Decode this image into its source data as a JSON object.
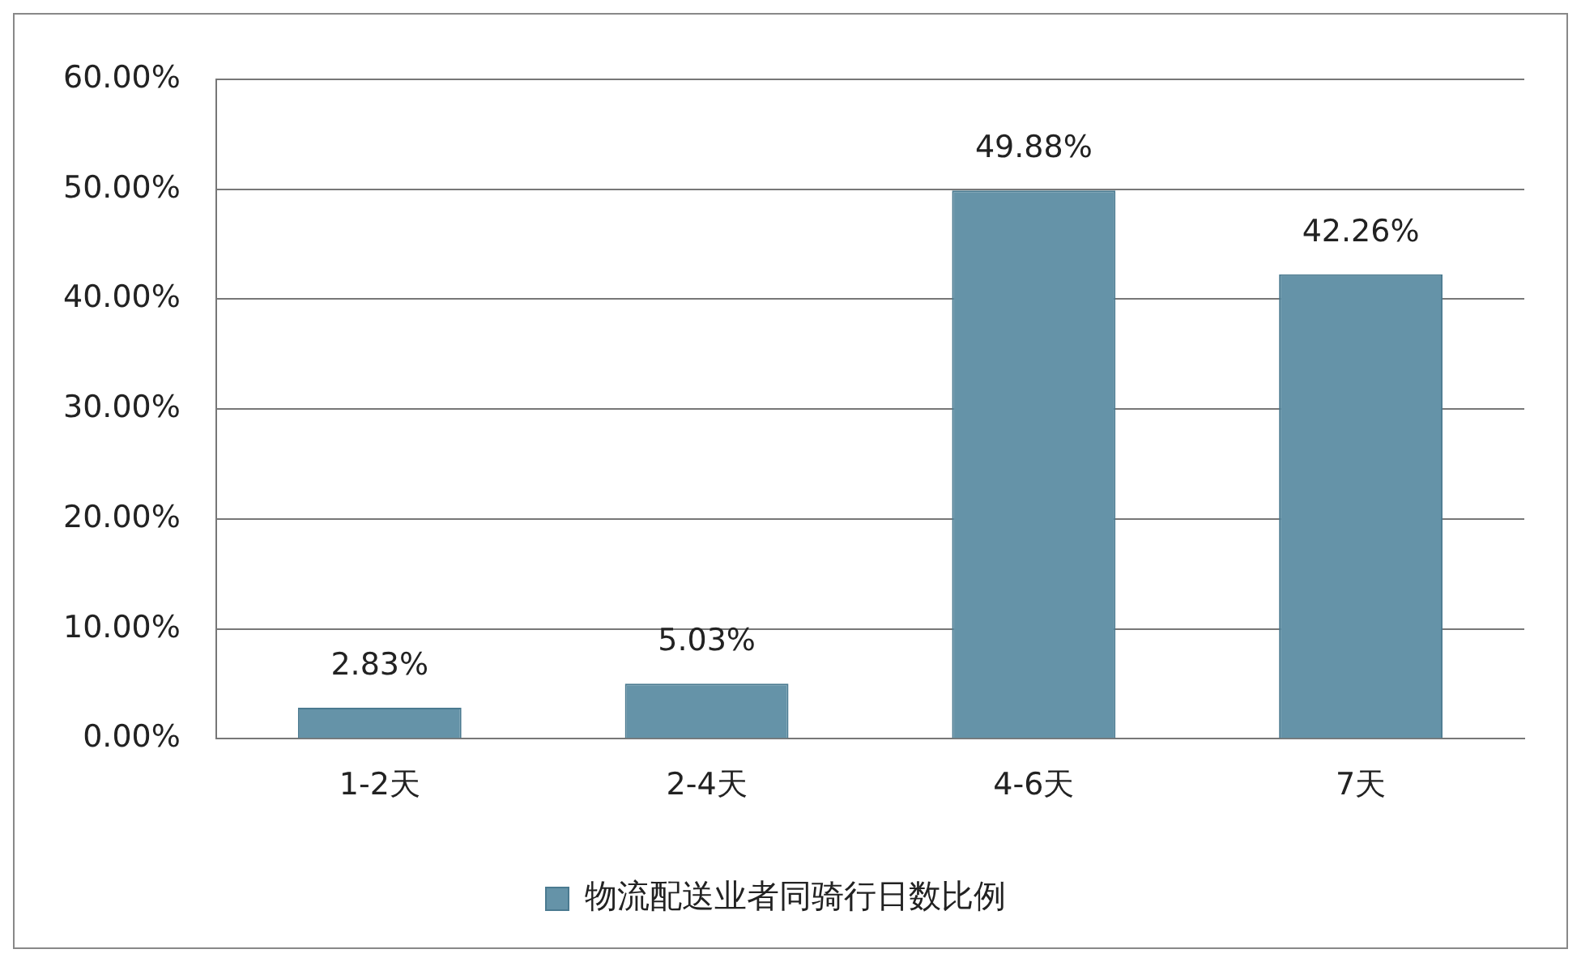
{
  "chart_data": {
    "type": "bar",
    "categories": [
      "1-2天",
      "2-4天",
      "4-6天",
      "7天"
    ],
    "series": [
      {
        "name": "物流配送业者同骑行日数比例",
        "color": "#6593a8",
        "values": [
          2.83,
          5.03,
          49.88,
          42.26
        ],
        "value_labels": [
          "2.83%",
          "5.03%",
          "49.88%",
          "42.26%"
        ]
      }
    ],
    "ylim": [
      0,
      60
    ],
    "yticks": [
      {
        "value": 0,
        "label": "0.00%"
      },
      {
        "value": 10,
        "label": "10.00%"
      },
      {
        "value": 20,
        "label": "20.00%"
      },
      {
        "value": 30,
        "label": "30.00%"
      },
      {
        "value": 40,
        "label": "40.00%"
      },
      {
        "value": 50,
        "label": "50.00%"
      },
      {
        "value": 60,
        "label": "60.00%"
      }
    ],
    "grid": "y",
    "legend": "bottom"
  }
}
